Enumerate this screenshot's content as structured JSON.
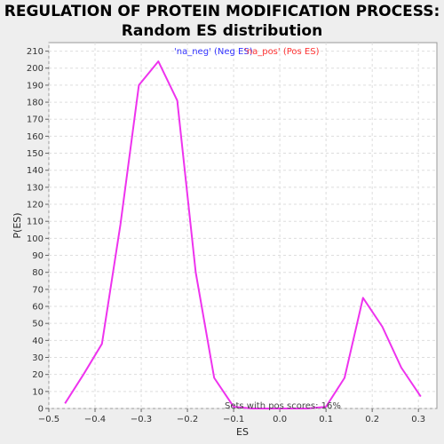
{
  "chart_data": {
    "type": "line",
    "title_line1": "REGULATION OF PROTEIN MODIFICATION PROCESS:",
    "title_line2": "Random ES distribution",
    "xlabel": "ES",
    "ylabel": "P(ES)",
    "xlim": [
      -0.5,
      0.34
    ],
    "ylim": [
      0,
      215
    ],
    "x_ticks": [
      -0.5,
      -0.4,
      -0.3,
      -0.2,
      -0.1,
      0.0,
      0.1,
      0.2,
      0.3
    ],
    "x_tick_labels": [
      "−0.5",
      "−0.4",
      "−0.3",
      "−0.2",
      "−0.1",
      "0.0",
      "0.1",
      "0.2",
      "0.3"
    ],
    "y_ticks": [
      0,
      10,
      20,
      30,
      40,
      50,
      60,
      70,
      80,
      90,
      100,
      110,
      120,
      130,
      140,
      150,
      160,
      170,
      180,
      190,
      200,
      210
    ],
    "grid": true,
    "legend_placement": "top-center",
    "legend": [
      {
        "label": "'na_neg' (Neg ES)",
        "color": "#3333ff"
      },
      {
        "label": "'na_pos' (Pos ES)",
        "color": "#ff3333"
      }
    ],
    "annotation": "Sets with pos scores: 16%",
    "series": [
      {
        "color": "#ee33ee",
        "x": [
          -0.465,
          -0.425,
          -0.385,
          -0.345,
          -0.305,
          -0.263,
          -0.222,
          -0.182,
          -0.142,
          -0.1,
          -0.06,
          -0.02,
          0.02,
          0.06,
          0.1,
          0.14,
          0.18,
          0.222,
          0.263,
          0.305
        ],
        "y": [
          3,
          20,
          38,
          108,
          190,
          204,
          181,
          80,
          18,
          1,
          0,
          0,
          0,
          0,
          1,
          18,
          65,
          48,
          24,
          7
        ]
      }
    ]
  }
}
